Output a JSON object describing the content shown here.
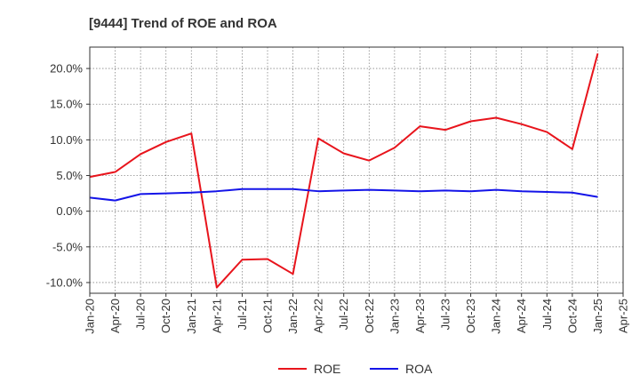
{
  "chart_data": {
    "type": "line",
    "title": "[9444]  Trend of ROE and ROA",
    "xlabel": "",
    "ylabel": "",
    "ylim": [
      -11.5,
      23.0
    ],
    "y_ticks": [
      {
        "value": 20,
        "label": "20.0%"
      },
      {
        "value": 15,
        "label": "15.0%"
      },
      {
        "value": 10,
        "label": "10.0%"
      },
      {
        "value": 5,
        "label": "5.0%"
      },
      {
        "value": 0,
        "label": "0.0%"
      },
      {
        "value": -5,
        "label": "-5.0%"
      },
      {
        "value": -10,
        "label": "-10.0%"
      }
    ],
    "x_ticks": [
      "Jan-20",
      "Apr-20",
      "Jul-20",
      "Oct-20",
      "Jan-21",
      "Apr-21",
      "Jul-21",
      "Oct-21",
      "Jan-22",
      "Apr-22",
      "Jul-22",
      "Oct-22",
      "Jan-23",
      "Apr-23",
      "Jul-23",
      "Oct-23",
      "Jan-24",
      "Apr-24",
      "Jul-24",
      "Oct-24",
      "Jan-25",
      "Apr-25"
    ],
    "grid": true,
    "legend_position": "bottom-center",
    "series": [
      {
        "name": "ROE",
        "color": "#e8141c",
        "values": [
          4.8,
          5.5,
          8.0,
          9.7,
          10.9,
          -10.7,
          -6.8,
          -6.7,
          -8.8,
          10.2,
          8.1,
          7.1,
          8.9,
          11.9,
          11.4,
          12.6,
          13.1,
          12.2,
          11.1,
          8.7,
          22.1
        ]
      },
      {
        "name": "ROA",
        "color": "#1414e8",
        "values": [
          1.9,
          1.5,
          2.4,
          2.5,
          2.6,
          2.8,
          3.1,
          3.1,
          3.1,
          2.8,
          2.9,
          3.0,
          2.9,
          2.8,
          2.9,
          2.8,
          3.0,
          2.8,
          2.7,
          2.6,
          2.0
        ]
      }
    ]
  }
}
